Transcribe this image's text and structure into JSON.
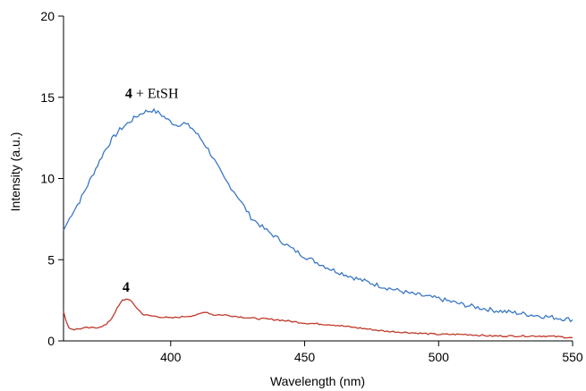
{
  "chart_data": {
    "type": "line",
    "xlabel": "Wavelength (nm)",
    "ylabel": "Intensity (a.u.)",
    "xlim": [
      360,
      550
    ],
    "ylim": [
      0,
      20
    ],
    "xticks": [
      400,
      450,
      500,
      550
    ],
    "yticks": [
      0,
      5,
      10,
      15,
      20
    ],
    "grid": false,
    "series": [
      {
        "name": "4 + EtSH",
        "label_bold": "4",
        "label_rest": " + EtSH",
        "color": "#3A78C3",
        "x": [
          360,
          363,
          366,
          369,
          372,
          375,
          378,
          381,
          384,
          387,
          390,
          393,
          396,
          399,
          402,
          405,
          408,
          411,
          414,
          417,
          420,
          425,
          430,
          435,
          440,
          445,
          450,
          460,
          470,
          480,
          490,
          500,
          510,
          520,
          530,
          540,
          550
        ],
        "y": [
          6.8,
          7.8,
          8.6,
          9.6,
          10.6,
          11.6,
          12.4,
          13.0,
          13.4,
          13.8,
          14.1,
          14.2,
          14.0,
          13.6,
          13.3,
          13.4,
          13.1,
          12.5,
          11.8,
          10.9,
          10.0,
          8.9,
          7.6,
          6.9,
          6.3,
          5.7,
          5.2,
          4.4,
          3.8,
          3.3,
          2.9,
          2.6,
          2.2,
          1.9,
          1.7,
          1.5,
          1.3
        ]
      },
      {
        "name": "4",
        "label_bold": "4",
        "label_rest": "",
        "color": "#C0392B",
        "x": [
          360,
          361,
          362,
          364,
          368,
          372,
          376,
          378,
          380,
          382,
          384,
          386,
          388,
          390,
          395,
          400,
          405,
          410,
          413,
          416,
          420,
          430,
          440,
          450,
          460,
          470,
          480,
          490,
          500,
          510,
          520,
          530,
          540,
          550
        ],
        "y": [
          1.8,
          1.2,
          0.8,
          0.7,
          0.8,
          0.8,
          1.0,
          1.4,
          2.0,
          2.5,
          2.6,
          2.3,
          1.9,
          1.6,
          1.5,
          1.4,
          1.5,
          1.6,
          1.8,
          1.6,
          1.6,
          1.4,
          1.3,
          1.1,
          1.0,
          0.8,
          0.6,
          0.5,
          0.4,
          0.4,
          0.3,
          0.3,
          0.3,
          0.2
        ]
      }
    ]
  }
}
